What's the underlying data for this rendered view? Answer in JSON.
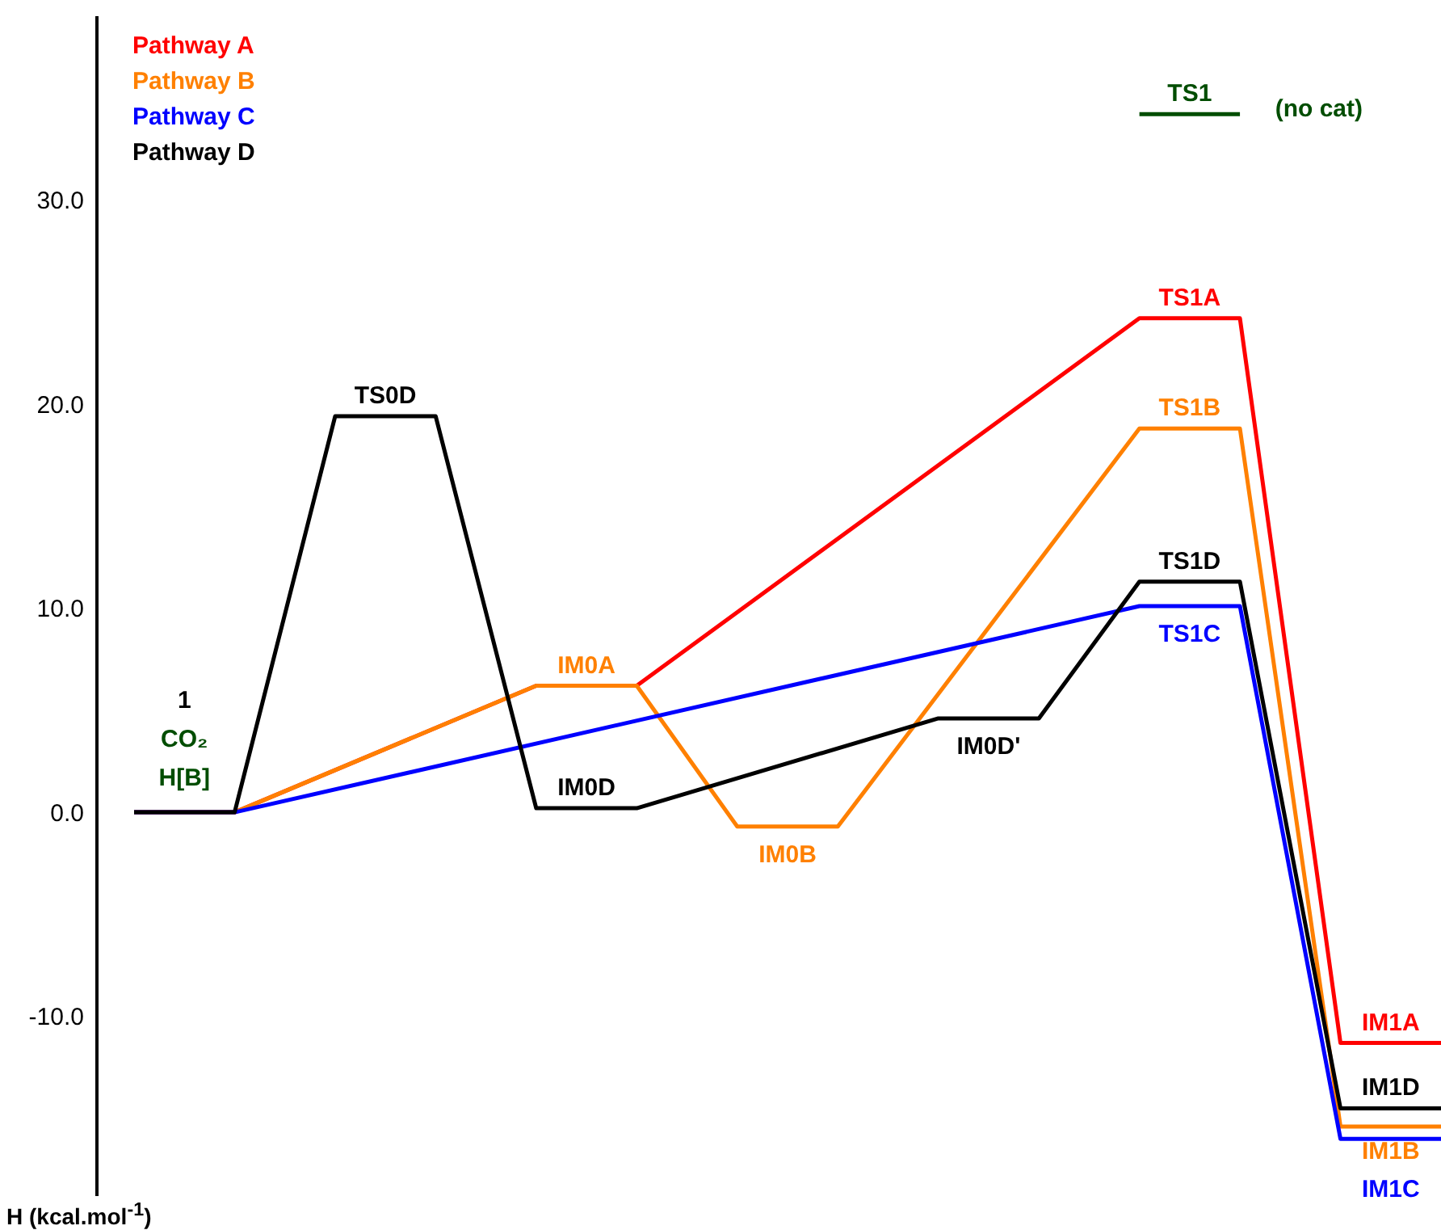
{
  "chart_data": {
    "type": "line",
    "categories": [
      null,
      null,
      null,
      null,
      null,
      null,
      null,
      null,
      null,
      null,
      null,
      null,
      null,
      null
    ],
    "series": [
      {
        "name": "Pathway A",
        "color": "#ff0000",
        "values": [
          0,
          0,
          null,
          null,
          6.2,
          6.2,
          null,
          null,
          null,
          null,
          24.2,
          24.2,
          -11.3,
          -11.3
        ],
        "value_labels": [
          null,
          null,
          null,
          null,
          null,
          null,
          null,
          null,
          null,
          null,
          "TS1A",
          null,
          "IM1A",
          null
        ]
      },
      {
        "name": "Pathway B",
        "color": "#ff8000",
        "values": [
          0,
          0,
          null,
          null,
          6.2,
          6.2,
          -0.7,
          -0.7,
          null,
          null,
          18.8,
          18.8,
          -15.4,
          -15.4
        ],
        "value_labels": [
          null,
          null,
          null,
          null,
          "IM0A",
          null,
          "IM0B",
          null,
          null,
          null,
          "TS1B",
          null,
          "IM1B",
          null
        ]
      },
      {
        "name": "Pathway C",
        "color": "#0000ff",
        "values": [
          0,
          0,
          null,
          null,
          null,
          null,
          null,
          null,
          null,
          null,
          10.1,
          10.1,
          -16.0,
          -16.0
        ],
        "value_labels": [
          null,
          null,
          null,
          null,
          null,
          null,
          null,
          null,
          null,
          null,
          "TS1C",
          null,
          "IM1C",
          null
        ]
      },
      {
        "name": "Pathway D",
        "color": "#000000",
        "values": [
          0,
          0,
          19.4,
          19.4,
          0.2,
          0.2,
          null,
          null,
          4.6,
          4.6,
          11.3,
          11.3,
          -14.5,
          -14.5
        ],
        "value_labels": [
          null,
          null,
          "TS0D",
          null,
          "IM0D",
          null,
          null,
          null,
          "IM0D'",
          null,
          "TS1D",
          null,
          "IM1D",
          null
        ]
      },
      {
        "color": "#004d00",
        "values": [
          null,
          null,
          null,
          null,
          null,
          null,
          null,
          null,
          null,
          null,
          34.2,
          34.2,
          null,
          null
        ],
        "value_labels": [
          null,
          null,
          null,
          null,
          null,
          null,
          null,
          null,
          null,
          null,
          "TS1",
          null,
          null,
          null
        ]
      }
    ],
    "ylim": [
      -18.8,
      39
    ],
    "yticks": [
      {
        "value": -10,
        "label": "-10.0"
      },
      {
        "value": 0,
        "label": "0.0"
      },
      {
        "value": 10,
        "label": "10.0"
      },
      {
        "value": 20,
        "label": "20.0"
      },
      {
        "value": 30,
        "label": "30.0"
      }
    ],
    "annotations": [
      "1",
      "CO₂",
      "H[B]",
      "(no cat)",
      "H (kcal.mol$^{-1}$)"
    ],
    "legend": "top left",
    "marker": "none",
    "line_style": "solid",
    "tick_labels": "y",
    "grid": false
  }
}
